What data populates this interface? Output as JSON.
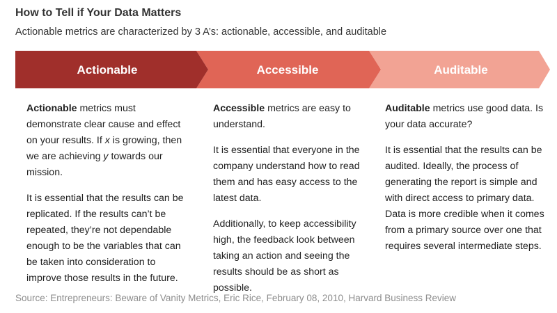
{
  "header": {
    "title": "How to Tell if Your Data Matters",
    "subtitle": "Actionable metrics are characterized by 3 A’s: actionable, accessible, and auditable"
  },
  "colors": {
    "actionable": "#a02f2b",
    "accessible": "#e06556",
    "auditable": "#f2a394"
  },
  "arrows": [
    {
      "label": "Actionable"
    },
    {
      "label": "Accessible"
    },
    {
      "label": "Auditable"
    }
  ],
  "columns": [
    {
      "term": "Actionable",
      "p1_rest": " metrics must demonstrate clear cause and effect on your results. If ",
      "x_var": "x",
      "p1_mid": " is growing, then we are achieving ",
      "y_var": "y",
      "p1_end": " towards our mission.",
      "p2": "It is essential that the results can be replicated. If the results can’t be repeated, they’re not dependable enough to be the variables that can be taken into consideration to improve those results in the future."
    },
    {
      "term": "Accessible",
      "p1_rest": " metrics are easy to understand.",
      "p2": "It is essential that everyone in the company understand how to read them and has easy access to the latest data.",
      "p3": "Additionally, to keep accessibility high, the feedback look between taking an action and seeing the results should be as short as possible."
    },
    {
      "term": "Auditable",
      "p1_rest": " metrics use good data. Is your data accurate?",
      "p2": "It is essential that the results can be audited. Ideally, the process of generating the report is simple and with direct access to primary data. Data is more credible when it comes from a primary source over one that requires several intermediate steps."
    }
  ],
  "source": "Source: Entrepreneurs: Beware of Vanity Metrics, Eric Rice, February 08, 2010, Harvard Business Review"
}
